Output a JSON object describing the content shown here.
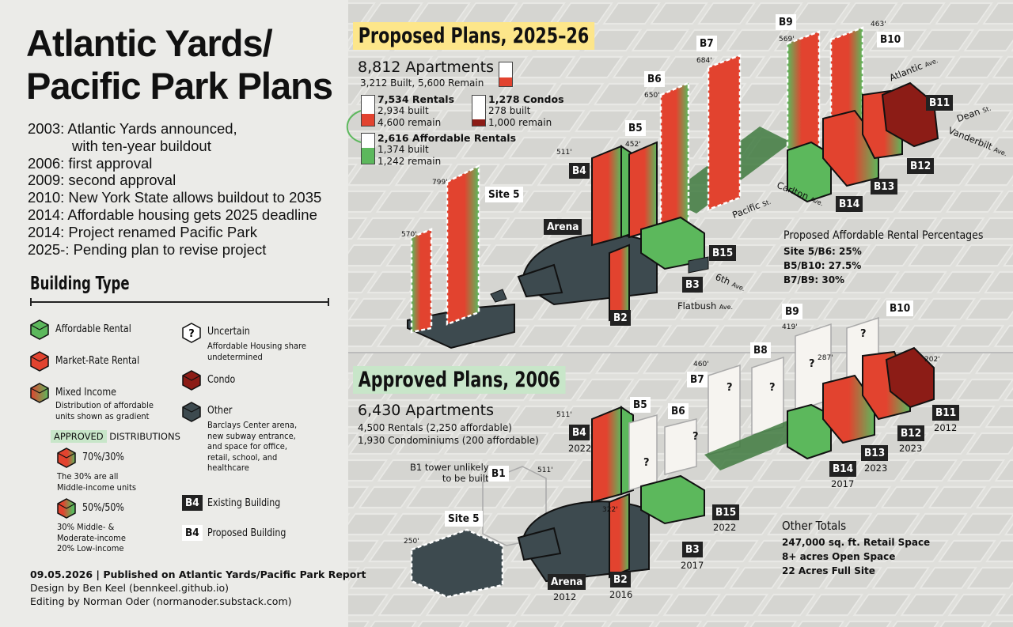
{
  "title": [
    "Atlantic Yards/",
    "Pacific Park Plans"
  ],
  "timeline": [
    {
      "text": "2003: Atlantic Yards announced,",
      "cont": "with ten-year buildout"
    },
    {
      "text": "2006: first approval"
    },
    {
      "text": "2009: second approval"
    },
    {
      "text": "2010: New York State allows buildout to 2035"
    },
    {
      "text": "2014: Affordable housing gets 2025 deadline"
    },
    {
      "text": "2014: Project renamed Pacific Park"
    },
    {
      "text": "2025-: Pending plan to revise project"
    }
  ],
  "building_type": {
    "title": "Building Type",
    "affordable": "Affordable Rental",
    "market": "Market-Rate Rental",
    "mixed": "Mixed Income",
    "mixed_sub": [
      "Distribution of affordable",
      "units shown as gradient"
    ],
    "approved_tag": "APPROVED",
    "distributions": "DISTRIBUTIONS",
    "d1_label": "70%/30%",
    "d1_sub": [
      "The 30% are all",
      "Middle-income units"
    ],
    "d2_label": "50%/50%",
    "d2_sub": [
      "30% Middle- &",
      "Moderate-income",
      "20% Low-income"
    ],
    "uncertain": "Uncertain",
    "uncertain_sub": [
      "Affordable Housing share",
      "undetermined"
    ],
    "condo": "Condo",
    "other": "Other",
    "other_sub": [
      "Barclays Center arena,",
      "new subway entrance,",
      "and space for office,",
      "retail, school, and",
      "healthcare"
    ],
    "existing_badge": "B4",
    "existing": "Existing Building",
    "proposed_badge": "B4",
    "proposed": "Proposed Building"
  },
  "footer": {
    "line1": "09.05.2026 | Published on Atlantic Yards/Pacific Park Report",
    "line2": "Design by Ben Keel (bennkeel.github.io)",
    "line3": "Editing by Norman Oder (normanoder.substack.com)"
  },
  "colors": {
    "green": "#5cb85c",
    "red": "#e2432f",
    "condo": "#8c1c16",
    "other": "#3d4a4f",
    "proposed_bg": "#fde68a",
    "approved_bg": "#c8e6c9"
  },
  "proposed": {
    "title": "Proposed Plans, 2025–26",
    "apartments": "8,812 Apartments",
    "apartments_sub": "3,212 Built, 5,600 Remain",
    "rentals": "7,534 Rentals",
    "rentals_built": "2,934 built",
    "rentals_remain": "4,600 remain",
    "condos": "1,278 Condos",
    "condos_built": "278 built",
    "condos_remain": "1,000 remain",
    "afford": "2,616 Affordable Rentals",
    "afford_built": "1,374 built",
    "afford_remain": "1,242 remain",
    "pct_title": "Proposed Affordable Rental Percentages",
    "pct": [
      "Site 5/B6: 25%",
      "B5/B10: 27.5%",
      "B7/B9: 30%"
    ],
    "labels": {
      "b9": "B9",
      "b10": "B10",
      "b7": "B7",
      "b6": "B6",
      "b5": "B5",
      "b4": "B4",
      "site5": "Site 5",
      "arena": "Arena",
      "b2": "B2",
      "b3": "B3",
      "b15": "B15",
      "b14": "B14",
      "b13": "B13",
      "b12": "B12",
      "b11": "B11"
    },
    "heights": {
      "b9": "569'",
      "b10": "463'",
      "b7": "684'",
      "b6": "650'",
      "b5": "452'",
      "b4": "511'",
      "site5a": "799'",
      "site5b": "570'"
    },
    "streets": {
      "atlantic": "Atlantic",
      "dean": "Dean",
      "vanderbilt": "Vanderbilt",
      "carlton": "Carlton",
      "pacific": "Pacific",
      "sixth": "6th",
      "flatbush": "Flatbush",
      "ave": "Ave.",
      "st": "St."
    }
  },
  "approved": {
    "title": "Approved Plans, 2006",
    "apartments": "6,430 Apartments",
    "l1": "4,500 Rentals (2,250 affordable)",
    "l2": "1,930 Condominiums (200 affordable)",
    "b1_note": [
      "B1 tower unlikely",
      "to be built"
    ],
    "other_title": "Other Totals",
    "other": [
      "247,000 sq. ft. Retail Space",
      "8+ acres Open Space",
      "22 Acres Full Site"
    ],
    "labels": {
      "b9": "B9",
      "b10": "B10",
      "b8": "B8",
      "b7": "B7",
      "b6": "B6",
      "b5": "B5",
      "b4": "B4",
      "b1": "B1",
      "site5": "Site 5",
      "arena": "Arena",
      "b2": "B2",
      "b3": "B3",
      "b15": "B15",
      "b14": "B14",
      "b13": "B13",
      "b12": "B12",
      "b11": "B11"
    },
    "years": {
      "b4": "2022",
      "arena": "2012",
      "b2": "2016",
      "b3": "2017",
      "b15": "2022",
      "b14": "2017",
      "b13": "2023",
      "b12": "2023",
      "b11": "2012"
    },
    "heights": {
      "b9": "419'",
      "b7": "460'",
      "b4": "511'",
      "b1": "511'",
      "arena": "322'",
      "site5": "250'",
      "b14": "287'",
      "b11": "202'"
    }
  }
}
